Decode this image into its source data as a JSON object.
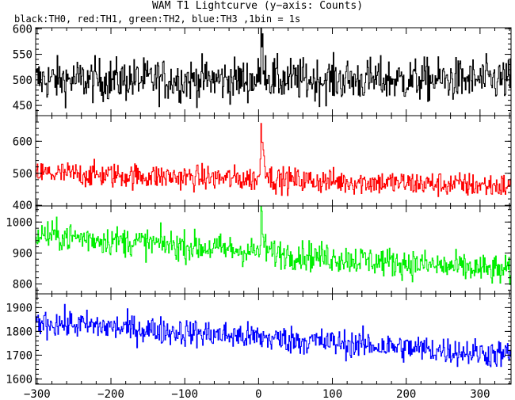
{
  "title": "WAM T1 Lightcurve (y−axis: Counts)",
  "subtitle": "black:TH0, red:TH1, green:TH2, blue:TH3 ,1bin = 1s",
  "chart_data": {
    "type": "line",
    "x_range": [
      -302,
      342
    ],
    "x_ticks": [
      -300,
      -200,
      -100,
      0,
      100,
      200,
      300
    ],
    "x_tick_labels": [
      "−300",
      "−200",
      "−100",
      "0",
      "100",
      "200",
      "300"
    ],
    "bin_seconds": 1,
    "panels": [
      {
        "series": "TH0",
        "color": "#000000",
        "ylim": [
          430,
          602
        ],
        "y_ticks": [
          450,
          500,
          550,
          600
        ],
        "y_tick_labels": [
          "450",
          "500",
          "550",
          "600"
        ],
        "baseline_start": 500,
        "baseline_end": 500,
        "noise": 30,
        "peak": 95,
        "peak_x": 3,
        "peak_width": 4
      },
      {
        "series": "TH1",
        "color": "#ff0000",
        "ylim": [
          398,
          680
        ],
        "y_ticks": [
          400,
          500,
          600
        ],
        "y_tick_labels": [
          "400",
          "500",
          "600"
        ],
        "baseline_start": 500,
        "baseline_end": 460,
        "noise": 28,
        "peak": 190,
        "peak_x": 3,
        "peak_width": 4
      },
      {
        "series": "TH2",
        "color": "#00ee00",
        "ylim": [
          768,
          1052
        ],
        "y_ticks": [
          800,
          900,
          1000
        ],
        "y_tick_labels": [
          "800",
          "900",
          "1000"
        ],
        "baseline_start": 960,
        "baseline_end": 840,
        "noise": 34,
        "peak": 120,
        "peak_x": 3,
        "peak_width": 3
      },
      {
        "series": "TH3",
        "color": "#0000ff",
        "ylim": [
          1578,
          1958
        ],
        "y_ticks": [
          1600,
          1700,
          1800,
          1900
        ],
        "y_tick_labels": [
          "1600",
          "1700",
          "1800",
          "1900"
        ],
        "baseline_start": 1840,
        "baseline_end": 1700,
        "noise": 42,
        "peak": 0,
        "peak_x": 0,
        "peak_width": 1
      }
    ]
  }
}
